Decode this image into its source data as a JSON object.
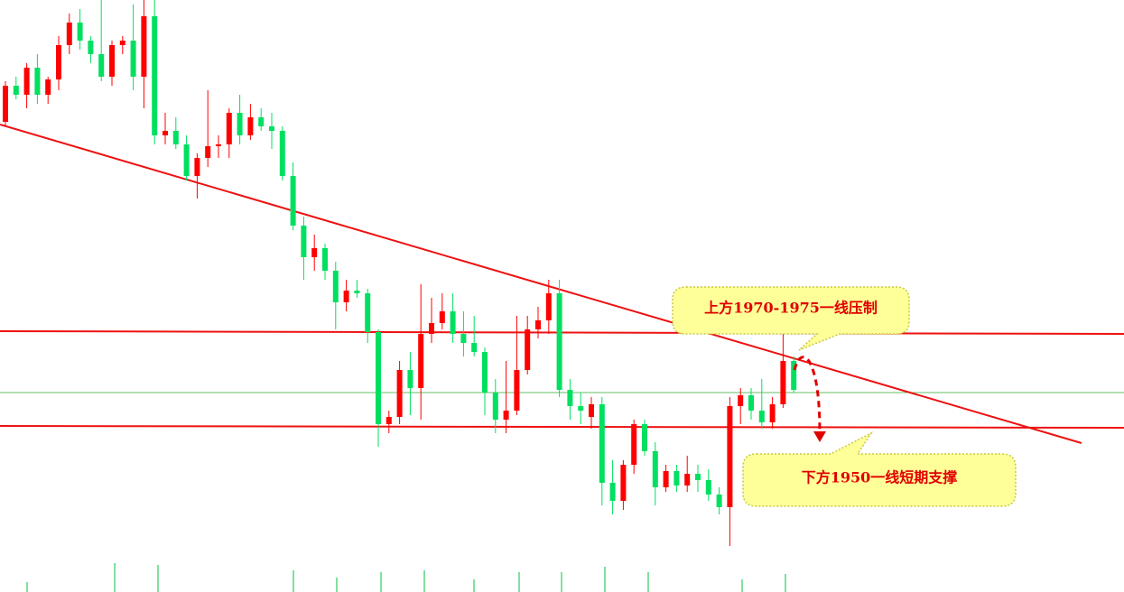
{
  "chart_data": {
    "type": "candlestick",
    "ylim": [
      1914.8,
      2046
    ],
    "colors": {
      "up": "#ff0000",
      "down": "#00e060"
    },
    "annotations": [
      "上方1970-1975一线压制",
      "下方1950一线短期支撑"
    ],
    "ohlc": [
      [
        2019,
        2028,
        2018,
        2027
      ],
      [
        2027,
        2029,
        2024,
        2025
      ],
      [
        2025,
        2032,
        2022,
        2031
      ],
      [
        2031,
        2034,
        2023,
        2025
      ],
      [
        2025,
        2029,
        2023,
        2028.4
      ],
      [
        2028.4,
        2038,
        2026,
        2036
      ],
      [
        2036,
        2043,
        2034,
        2041
      ],
      [
        2041,
        2044,
        2035,
        2037
      ],
      [
        2037,
        2038,
        2032,
        2034
      ],
      [
        2034,
        2046,
        2028,
        2029
      ],
      [
        2029,
        2037,
        2027,
        2036
      ],
      [
        2036,
        2038,
        2034,
        2037
      ],
      [
        2037,
        2045,
        2026,
        2029
      ],
      [
        2029,
        2046,
        2022,
        2042.4
      ],
      [
        2042.4,
        2046,
        2014,
        2016
      ],
      [
        2016,
        2021,
        2014,
        2017
      ],
      [
        2017,
        2020,
        2013,
        2014
      ],
      [
        2014,
        2016,
        2006,
        2007
      ],
      [
        2007,
        2012,
        2002,
        2011
      ],
      [
        2011,
        2026,
        2009,
        2013.6
      ],
      [
        2013.6,
        2016,
        2011,
        2014
      ],
      [
        2014,
        2022,
        2011,
        2021
      ],
      [
        2021,
        2025,
        2014,
        2016
      ],
      [
        2016,
        2023,
        2015,
        2020
      ],
      [
        2020,
        2022,
        2017,
        2018
      ],
      [
        2018,
        2021,
        2013,
        2017
      ],
      [
        2017,
        2018,
        2006,
        2007
      ],
      [
        2007,
        2010,
        1995,
        1996
      ],
      [
        1996,
        1998,
        1984,
        1989
      ],
      [
        1989,
        1994,
        1986,
        1991
      ],
      [
        1991,
        1992,
        1984,
        1986
      ],
      [
        1986,
        1988,
        1973,
        1979
      ],
      [
        1979,
        1984,
        1977,
        1981.6
      ],
      [
        1981.6,
        1984,
        1980,
        1981
      ],
      [
        1981,
        1982,
        1970,
        1972.4
      ],
      [
        1972.4,
        1973,
        1947,
        1952
      ],
      [
        1952,
        1955,
        1950,
        1953.6
      ],
      [
        1953.6,
        1966,
        1952,
        1964
      ],
      [
        1964,
        1968,
        1954,
        1960
      ],
      [
        1960,
        1983,
        1953,
        1972
      ],
      [
        1972,
        1980,
        1970,
        1974.4
      ],
      [
        1974.4,
        1981,
        1973,
        1977
      ],
      [
        1977,
        1981,
        1970,
        1972
      ],
      [
        1972,
        1977,
        1967,
        1970
      ],
      [
        1970,
        1976,
        1967,
        1968
      ],
      [
        1968,
        1969,
        1954,
        1959
      ],
      [
        1959,
        1962,
        1950,
        1953
      ],
      [
        1953,
        1966,
        1950,
        1955
      ],
      [
        1955,
        1976,
        1954,
        1964
      ],
      [
        1964,
        1976,
        1963,
        1973
      ],
      [
        1973,
        1978,
        1971,
        1975
      ],
      [
        1975,
        1984,
        1972,
        1981
      ],
      [
        1981,
        1984,
        1958,
        1959.6
      ],
      [
        1959.6,
        1962,
        1953,
        1956
      ],
      [
        1956,
        1959,
        1952,
        1955
      ],
      [
        1953.6,
        1958,
        1951,
        1956.4
      ],
      [
        1956.4,
        1958,
        1934,
        1939
      ],
      [
        1939,
        1944,
        1932,
        1935
      ],
      [
        1935,
        1944,
        1933,
        1943
      ],
      [
        1943,
        1953,
        1941,
        1952
      ],
      [
        1952,
        1953,
        1945,
        1946
      ],
      [
        1946,
        1948,
        1934,
        1938
      ],
      [
        1938,
        1943,
        1937,
        1941.6
      ],
      [
        1941.6,
        1943,
        1937,
        1938.4
      ],
      [
        1938.4,
        1945,
        1937,
        1941
      ],
      [
        1941,
        1943,
        1937,
        1939.6
      ],
      [
        1939.6,
        1942,
        1935,
        1936.4
      ],
      [
        1936.4,
        1938,
        1932,
        1933.6
      ],
      [
        1933.6,
        1958,
        1925,
        1956
      ],
      [
        1956,
        1960,
        1952,
        1958.4
      ],
      [
        1958.4,
        1960,
        1953,
        1955
      ],
      [
        1955,
        1962,
        1951,
        1952.4
      ],
      [
        1952.4,
        1958,
        1951,
        1956.4
      ],
      [
        1956.4,
        1972,
        1955.6,
        1966
      ],
      [
        1966,
        1967,
        1959,
        1959.6
      ]
    ]
  }
}
